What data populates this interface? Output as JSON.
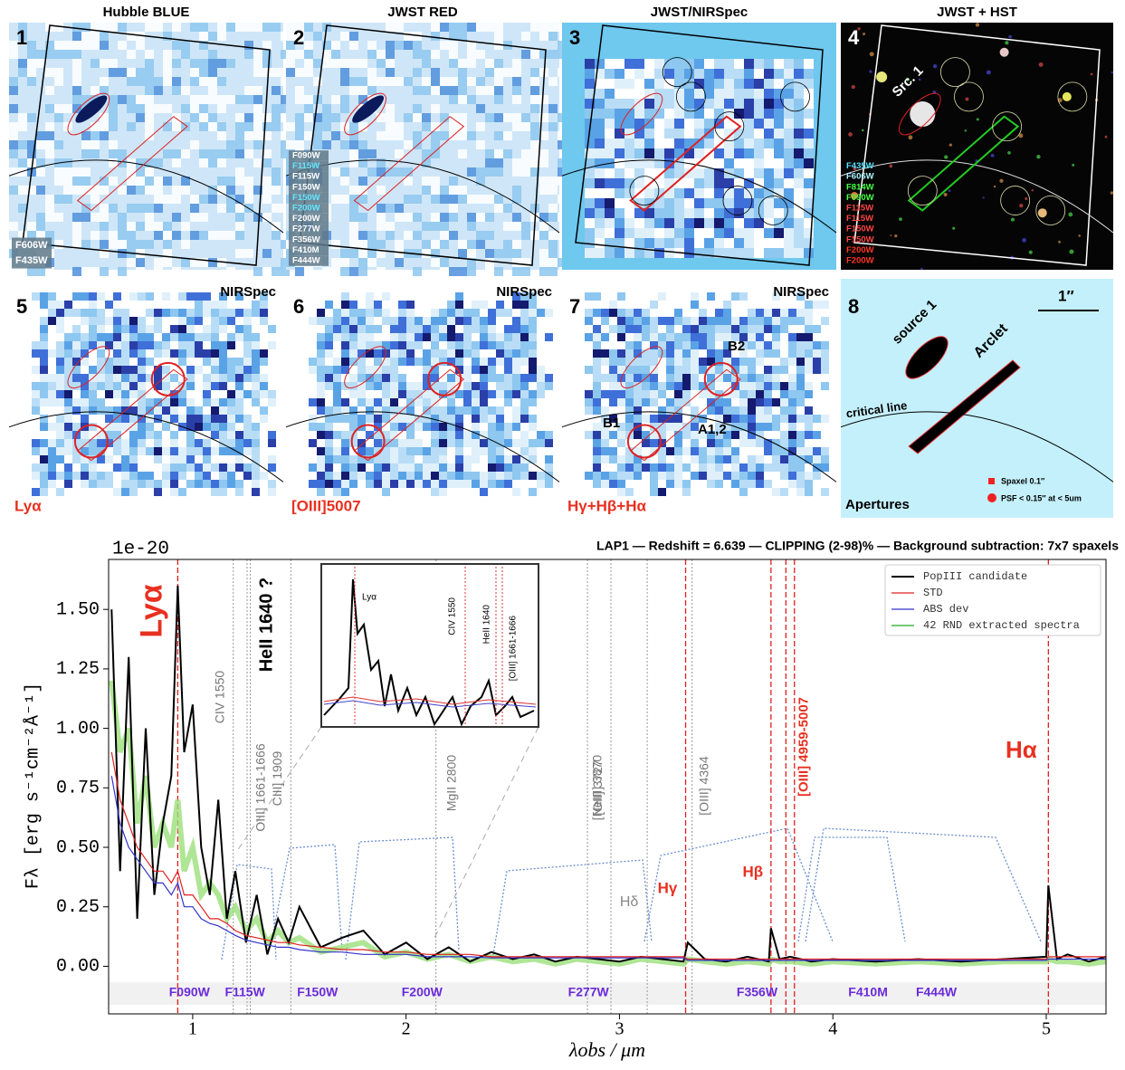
{
  "panels": [
    {
      "number": "1",
      "title": "Hubble  BLUE",
      "filters": [
        "F606W",
        "F435W"
      ],
      "filter_colors": [
        "#ffffff",
        "#ffffff"
      ]
    },
    {
      "number": "2",
      "title": "JWST  RED",
      "filters": [
        "F090W",
        "F115W",
        "F115W",
        "F150W",
        "F150W",
        "F200W",
        "F200W",
        "F277W",
        "F356W",
        "F410M",
        "F444W"
      ],
      "filter_colors": [
        "#ffffff",
        "#66e6ff",
        "#ffffff",
        "#ffffff",
        "#66e6ff",
        "#66e6ff",
        "#ffffff",
        "#ffffff",
        "#ffffff",
        "#ffffff",
        "#ffffff"
      ]
    },
    {
      "number": "3",
      "title": "JWST/NIRSpec"
    },
    {
      "number": "4",
      "title": "JWST + HST",
      "filters": [
        "F435W",
        "F606W",
        "F814W",
        "F090W",
        "F115W",
        "F115W",
        "F150W",
        "F150W",
        "F200W",
        "F200W"
      ],
      "filter_colors": [
        "#55e0ff",
        "#aaf6ff",
        "#44ff44",
        "#44ff44",
        "#ff4444",
        "#ff4444",
        "#ff4444",
        "#ff4444",
        "#ff3322",
        "#ff3322"
      ],
      "labels": [
        "Src. 1"
      ]
    },
    {
      "number": "5",
      "tag": "NIRSpec",
      "line": "Lyα"
    },
    {
      "number": "6",
      "tag": "NIRSpec",
      "line": "[OIII]5007"
    },
    {
      "number": "7",
      "tag": "NIRSpec",
      "line": "Hγ+Hβ+Hα",
      "labels": [
        "B2",
        "B1",
        "A1,2"
      ]
    },
    {
      "number": "8",
      "labels": [
        "source 1",
        "Arclet",
        "critical line",
        "1″",
        "Apertures",
        "Spaxel 0.1″",
        "PSF < 0.15″ at < 5um"
      ]
    }
  ],
  "chart_data": {
    "type": "line",
    "title": "LAP1 — Redshift = 6.639 — CLIPPING (2-98)% — Background subtraction: 7x7 spaxels",
    "x_label": "λobs / μm",
    "y_label": "Fλ [erg s⁻¹cm⁻²Å⁻¹]",
    "y_offset": "1e-20",
    "xlim": [
      0.606,
      5.28
    ],
    "ylim": [
      -0.2,
      1.71
    ],
    "xticks": [
      1,
      2,
      3,
      4,
      5
    ],
    "yticks": [
      {
        "value": 0,
        "label": "0.00"
      },
      {
        "value": 0.25,
        "label": "0.25"
      },
      {
        "value": 0.5,
        "label": "0.50"
      },
      {
        "value": 0.75,
        "label": "0.75"
      },
      {
        "value": 1,
        "label": "1.00"
      },
      {
        "value": 1.25,
        "label": "1.25"
      },
      {
        "value": 1.5,
        "label": "1.50"
      }
    ],
    "legend": "upper right",
    "x": [
      0.62,
      0.66,
      0.7,
      0.74,
      0.78,
      0.82,
      0.86,
      0.9,
      0.93,
      0.96,
      1.0,
      1.04,
      1.08,
      1.12,
      1.16,
      1.2,
      1.25,
      1.3,
      1.35,
      1.4,
      1.45,
      1.5,
      1.6,
      1.7,
      1.8,
      1.9,
      2.0,
      2.1,
      2.2,
      2.3,
      2.4,
      2.5,
      2.6,
      2.7,
      2.8,
      2.9,
      3.0,
      3.1,
      3.2,
      3.3,
      3.32,
      3.4,
      3.5,
      3.6,
      3.7,
      3.71,
      3.75,
      3.8,
      3.9,
      4.0,
      4.2,
      4.4,
      4.6,
      4.8,
      5.0,
      5.01,
      5.05,
      5.1,
      5.2,
      5.28
    ],
    "series": [
      {
        "name": "42 RND extracted spectra",
        "color": "#22aa22",
        "values": [
          1.2,
          0.9,
          1.0,
          0.6,
          0.8,
          0.5,
          0.6,
          0.5,
          0.7,
          0.4,
          0.5,
          0.3,
          0.35,
          0.3,
          0.2,
          0.25,
          0.15,
          0.2,
          0.1,
          0.15,
          0.1,
          0.12,
          0.06,
          0.08,
          0.1,
          0.04,
          0.06,
          0.03,
          0.05,
          0.02,
          0.04,
          0.02,
          0.03,
          0.01,
          0.03,
          0.02,
          0.01,
          0.03,
          0.02,
          0.01,
          0.03,
          0.02,
          0.01,
          0.02,
          0.01,
          0.03,
          0.02,
          0.02,
          0.01,
          0.02,
          0.01,
          0.02,
          0.01,
          0.02,
          0.02,
          0.03,
          0.02,
          0.02,
          0.01,
          0.02
        ]
      },
      {
        "name": "PopIII candidate",
        "color": "#000000",
        "values": [
          1.5,
          0.4,
          1.3,
          0.2,
          1.0,
          0.3,
          0.6,
          0.8,
          1.6,
          0.9,
          1.1,
          0.5,
          0.3,
          0.7,
          0.2,
          0.4,
          0.1,
          0.3,
          0.05,
          0.2,
          0.1,
          0.25,
          0.08,
          0.12,
          0.15,
          0.05,
          0.1,
          0.03,
          0.08,
          0.02,
          0.06,
          0.03,
          0.05,
          0.02,
          0.04,
          0.03,
          0.02,
          0.04,
          0.03,
          0.02,
          0.1,
          0.03,
          0.02,
          0.04,
          0.02,
          0.16,
          0.03,
          0.04,
          0.02,
          0.03,
          0.02,
          0.03,
          0.02,
          0.03,
          0.04,
          0.34,
          0.03,
          0.05,
          0.02,
          0.04
        ]
      },
      {
        "name": "STD",
        "color": "#e02020",
        "values": [
          0.9,
          0.7,
          0.6,
          0.5,
          0.45,
          0.4,
          0.4,
          0.35,
          0.4,
          0.3,
          0.3,
          0.25,
          0.2,
          0.2,
          0.18,
          0.15,
          0.13,
          0.12,
          0.11,
          0.1,
          0.1,
          0.09,
          0.08,
          0.07,
          0.07,
          0.06,
          0.06,
          0.05,
          0.05,
          0.05,
          0.04,
          0.04,
          0.04,
          0.04,
          0.04,
          0.04,
          0.04,
          0.04,
          0.04,
          0.04,
          0.03,
          0.03,
          0.03,
          0.03,
          0.03,
          0.03,
          0.03,
          0.03,
          0.03,
          0.03,
          0.03,
          0.03,
          0.03,
          0.03,
          0.03,
          0.04,
          0.04,
          0.04,
          0.04,
          0.04
        ]
      },
      {
        "name": "ABS dev",
        "color": "#3333cc",
        "values": [
          0.8,
          0.6,
          0.5,
          0.45,
          0.4,
          0.35,
          0.35,
          0.3,
          0.35,
          0.25,
          0.25,
          0.2,
          0.18,
          0.17,
          0.15,
          0.13,
          0.11,
          0.1,
          0.09,
          0.08,
          0.08,
          0.07,
          0.06,
          0.06,
          0.05,
          0.05,
          0.05,
          0.04,
          0.04,
          0.04,
          0.035,
          0.035,
          0.035,
          0.035,
          0.035,
          0.035,
          0.035,
          0.035,
          0.035,
          0.035,
          0.025,
          0.025,
          0.025,
          0.025,
          0.025,
          0.025,
          0.025,
          0.025,
          0.025,
          0.025,
          0.025,
          0.025,
          0.025,
          0.025,
          0.025,
          0.03,
          0.03,
          0.03,
          0.03,
          0.03
        ]
      }
    ],
    "lines": [
      {
        "label": "Lyα",
        "x": [
          0.93
        ],
        "color": "#e02020"
      },
      {
        "label": "CIV 1550",
        "x": [
          1.19
        ],
        "color": "#999999"
      },
      {
        "label": "HeII 1640 ?",
        "x": [
          1.255
        ],
        "color": "#999999"
      },
      {
        "label": "OIII] 1661-1666",
        "x": [
          1.27
        ],
        "color": "#999999"
      },
      {
        "label": "CIII] 1909",
        "x": [
          1.46
        ],
        "color": "#999999"
      },
      {
        "label": "MgII 2800",
        "x": [
          2.14
        ],
        "color": "#999999"
      },
      {
        "label": "[OII] 3727",
        "x": [
          2.85
        ],
        "color": "#999999"
      },
      {
        "label": "[NeIII] 3870",
        "x": [
          2.96
        ],
        "color": "#999999"
      },
      {
        "label": "Hδ",
        "x": [
          3.13
        ],
        "color": "#999999"
      },
      {
        "label": "[OIII] 4364",
        "x": [
          3.34
        ],
        "color": "#999999"
      },
      {
        "label": "Hγ",
        "x": [
          3.31
        ],
        "color": "#e02020"
      },
      {
        "label": "Hβ",
        "x": [
          3.71
        ],
        "color": "#e02020"
      },
      {
        "label": "[OIII] 4959-5007",
        "x": [
          3.78,
          3.82
        ],
        "color": "#e02020"
      },
      {
        "label": "Hα",
        "x": [
          5.01
        ],
        "color": "#e02020"
      }
    ],
    "filters": [
      {
        "label": "F090W",
        "x": 0.9
      },
      {
        "label": "F115W",
        "x": 1.16
      },
      {
        "label": "F150W",
        "x": 1.5
      },
      {
        "label": "F200W",
        "x": 1.99
      },
      {
        "label": "F277W",
        "x": 2.77
      },
      {
        "label": "F356W",
        "x": 3.56
      },
      {
        "label": "F410M",
        "x": 4.08
      },
      {
        "label": "F444W",
        "x": 4.4
      }
    ],
    "inset_labels": [
      "Lyα",
      "CIV 1550",
      "HeII 1640",
      "[OIII] 1661-1666"
    ]
  }
}
